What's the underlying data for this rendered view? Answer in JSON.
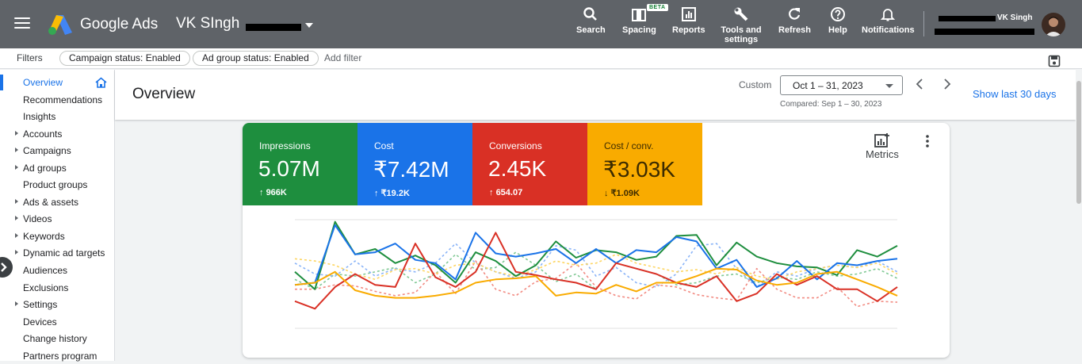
{
  "app": {
    "product_name": "Google Ads",
    "account_name": "VK SIngh",
    "user_name": "VK Singh"
  },
  "toolbar": {
    "items": [
      {
        "label": "Search",
        "icon": "search-icon"
      },
      {
        "label": "Spacing",
        "icon": "spacing-icon",
        "badge": "BETA"
      },
      {
        "label": "Reports",
        "icon": "reports-icon"
      },
      {
        "label": "Tools and settings",
        "icon": "wrench-icon"
      },
      {
        "label": "Refresh",
        "icon": "refresh-icon"
      },
      {
        "label": "Help",
        "icon": "help-icon"
      },
      {
        "label": "Notifications",
        "icon": "bell-icon"
      }
    ]
  },
  "filters": {
    "label": "Filters",
    "chips": [
      "Campaign status: Enabled",
      "Ad group status: Enabled"
    ],
    "add_filter": "Add filter"
  },
  "sidebar": {
    "items": [
      {
        "label": "Overview",
        "expandable": false,
        "active": true
      },
      {
        "label": "Recommendations",
        "expandable": false
      },
      {
        "label": "Insights",
        "expandable": false
      },
      {
        "label": "Accounts",
        "expandable": true
      },
      {
        "label": "Campaigns",
        "expandable": true
      },
      {
        "label": "Ad groups",
        "expandable": true
      },
      {
        "label": "Product groups",
        "expandable": false
      },
      {
        "label": "Ads & assets",
        "expandable": true
      },
      {
        "label": "Videos",
        "expandable": true
      },
      {
        "label": "Keywords",
        "expandable": true
      },
      {
        "label": "Dynamic ad targets",
        "expandable": true
      },
      {
        "label": "Audiences",
        "expandable": false
      },
      {
        "label": "Exclusions",
        "expandable": false
      },
      {
        "label": "Settings",
        "expandable": true
      },
      {
        "label": "Devices",
        "expandable": false
      },
      {
        "label": "Change history",
        "expandable": false
      },
      {
        "label": "Partners program",
        "expandable": false
      }
    ]
  },
  "header": {
    "title": "Overview",
    "date_range_label": "Custom",
    "date_range": "Oct 1 – 31, 2023",
    "compared": "Compared: Sep 1 – 30, 2023",
    "show_last": "Show last 30 days"
  },
  "scorecards": [
    {
      "name": "Impressions",
      "value": "5.07M",
      "delta": "966K",
      "direction": "up",
      "color": "#1e8e3e"
    },
    {
      "name": "Cost",
      "value": "₹7.42M",
      "delta": "₹19.2K",
      "direction": "up",
      "color": "#1a73e8"
    },
    {
      "name": "Conversions",
      "value": "2.45K",
      "delta": "654.07",
      "direction": "up",
      "color": "#d93025"
    },
    {
      "name": "Cost / conv.",
      "value": "₹3.03K",
      "delta": "₹1.09K",
      "direction": "down",
      "color": "#f9ab00"
    }
  ],
  "metrics_button": "Metrics",
  "chart_data": {
    "type": "line",
    "x": [
      1,
      2,
      3,
      4,
      5,
      6,
      7,
      8,
      9,
      10,
      11,
      12,
      13,
      14,
      15,
      16,
      17,
      18,
      19,
      20,
      21,
      22,
      23,
      24,
      25,
      26,
      27,
      28,
      29,
      30,
      31
    ],
    "ylim": [
      0,
      100
    ],
    "grid": true,
    "series": [
      {
        "color": "#1e8e3e",
        "style": "solid",
        "values": [
          52,
          36,
          98,
          68,
          73,
          60,
          67,
          58,
          42,
          70,
          62,
          48,
          58,
          80,
          65,
          72,
          70,
          63,
          66,
          85,
          86,
          58,
          79,
          66,
          60,
          57,
          56,
          49,
          72,
          66,
          76
        ]
      },
      {
        "color": "#1a73e8",
        "style": "solid",
        "values": [
          40,
          42,
          95,
          68,
          70,
          78,
          63,
          60,
          45,
          88,
          69,
          66,
          69,
          73,
          60,
          73,
          60,
          72,
          70,
          84,
          80,
          55,
          63,
          38,
          46,
          62,
          45,
          60,
          58,
          62,
          64
        ]
      },
      {
        "color": "#d93025",
        "style": "solid",
        "values": [
          25,
          18,
          38,
          50,
          40,
          38,
          78,
          47,
          38,
          52,
          88,
          52,
          49,
          45,
          42,
          36,
          60,
          55,
          50,
          42,
          38,
          48,
          25,
          32,
          50,
          40,
          48,
          36,
          36,
          25,
          38
        ]
      },
      {
        "color": "#f9ab00",
        "style": "solid",
        "values": [
          40,
          42,
          52,
          35,
          30,
          28,
          28,
          30,
          33,
          42,
          45,
          46,
          48,
          30,
          33,
          32,
          40,
          34,
          42,
          42,
          48,
          55,
          54,
          44,
          40,
          42,
          50,
          52,
          45,
          38,
          30
        ]
      },
      {
        "color": "#81c995",
        "style": "dashed",
        "values": [
          45,
          36,
          50,
          48,
          52,
          56,
          42,
          50,
          68,
          54,
          56,
          70,
          58,
          43,
          50,
          36,
          60,
          55,
          50,
          40,
          42,
          48,
          50,
          42,
          47,
          45,
          52,
          48,
          50,
          55,
          46
        ]
      },
      {
        "color": "#8ab4f8",
        "style": "dashed",
        "values": [
          60,
          50,
          48,
          62,
          48,
          55,
          52,
          60,
          78,
          60,
          52,
          46,
          52,
          76,
          72,
          48,
          56,
          42,
          38,
          50,
          76,
          78,
          55,
          38,
          52,
          48,
          55,
          58,
          56,
          62,
          52
        ]
      },
      {
        "color": "#f28b82",
        "style": "dashed",
        "values": [
          36,
          36,
          40,
          39,
          34,
          30,
          33,
          52,
          32,
          62,
          36,
          30,
          43,
          46,
          60,
          38,
          30,
          27,
          40,
          38,
          31,
          28,
          26,
          55,
          36,
          28,
          28,
          38,
          20,
          25,
          24
        ]
      },
      {
        "color": "#fdd663",
        "style": "dashed",
        "values": [
          64,
          62,
          58,
          50,
          45,
          54,
          55,
          50,
          58,
          60,
          52,
          48,
          54,
          62,
          58,
          60,
          68,
          60,
          56,
          52,
          54,
          50,
          56,
          48,
          45,
          52,
          55,
          58,
          56,
          60,
          50
        ]
      }
    ]
  }
}
